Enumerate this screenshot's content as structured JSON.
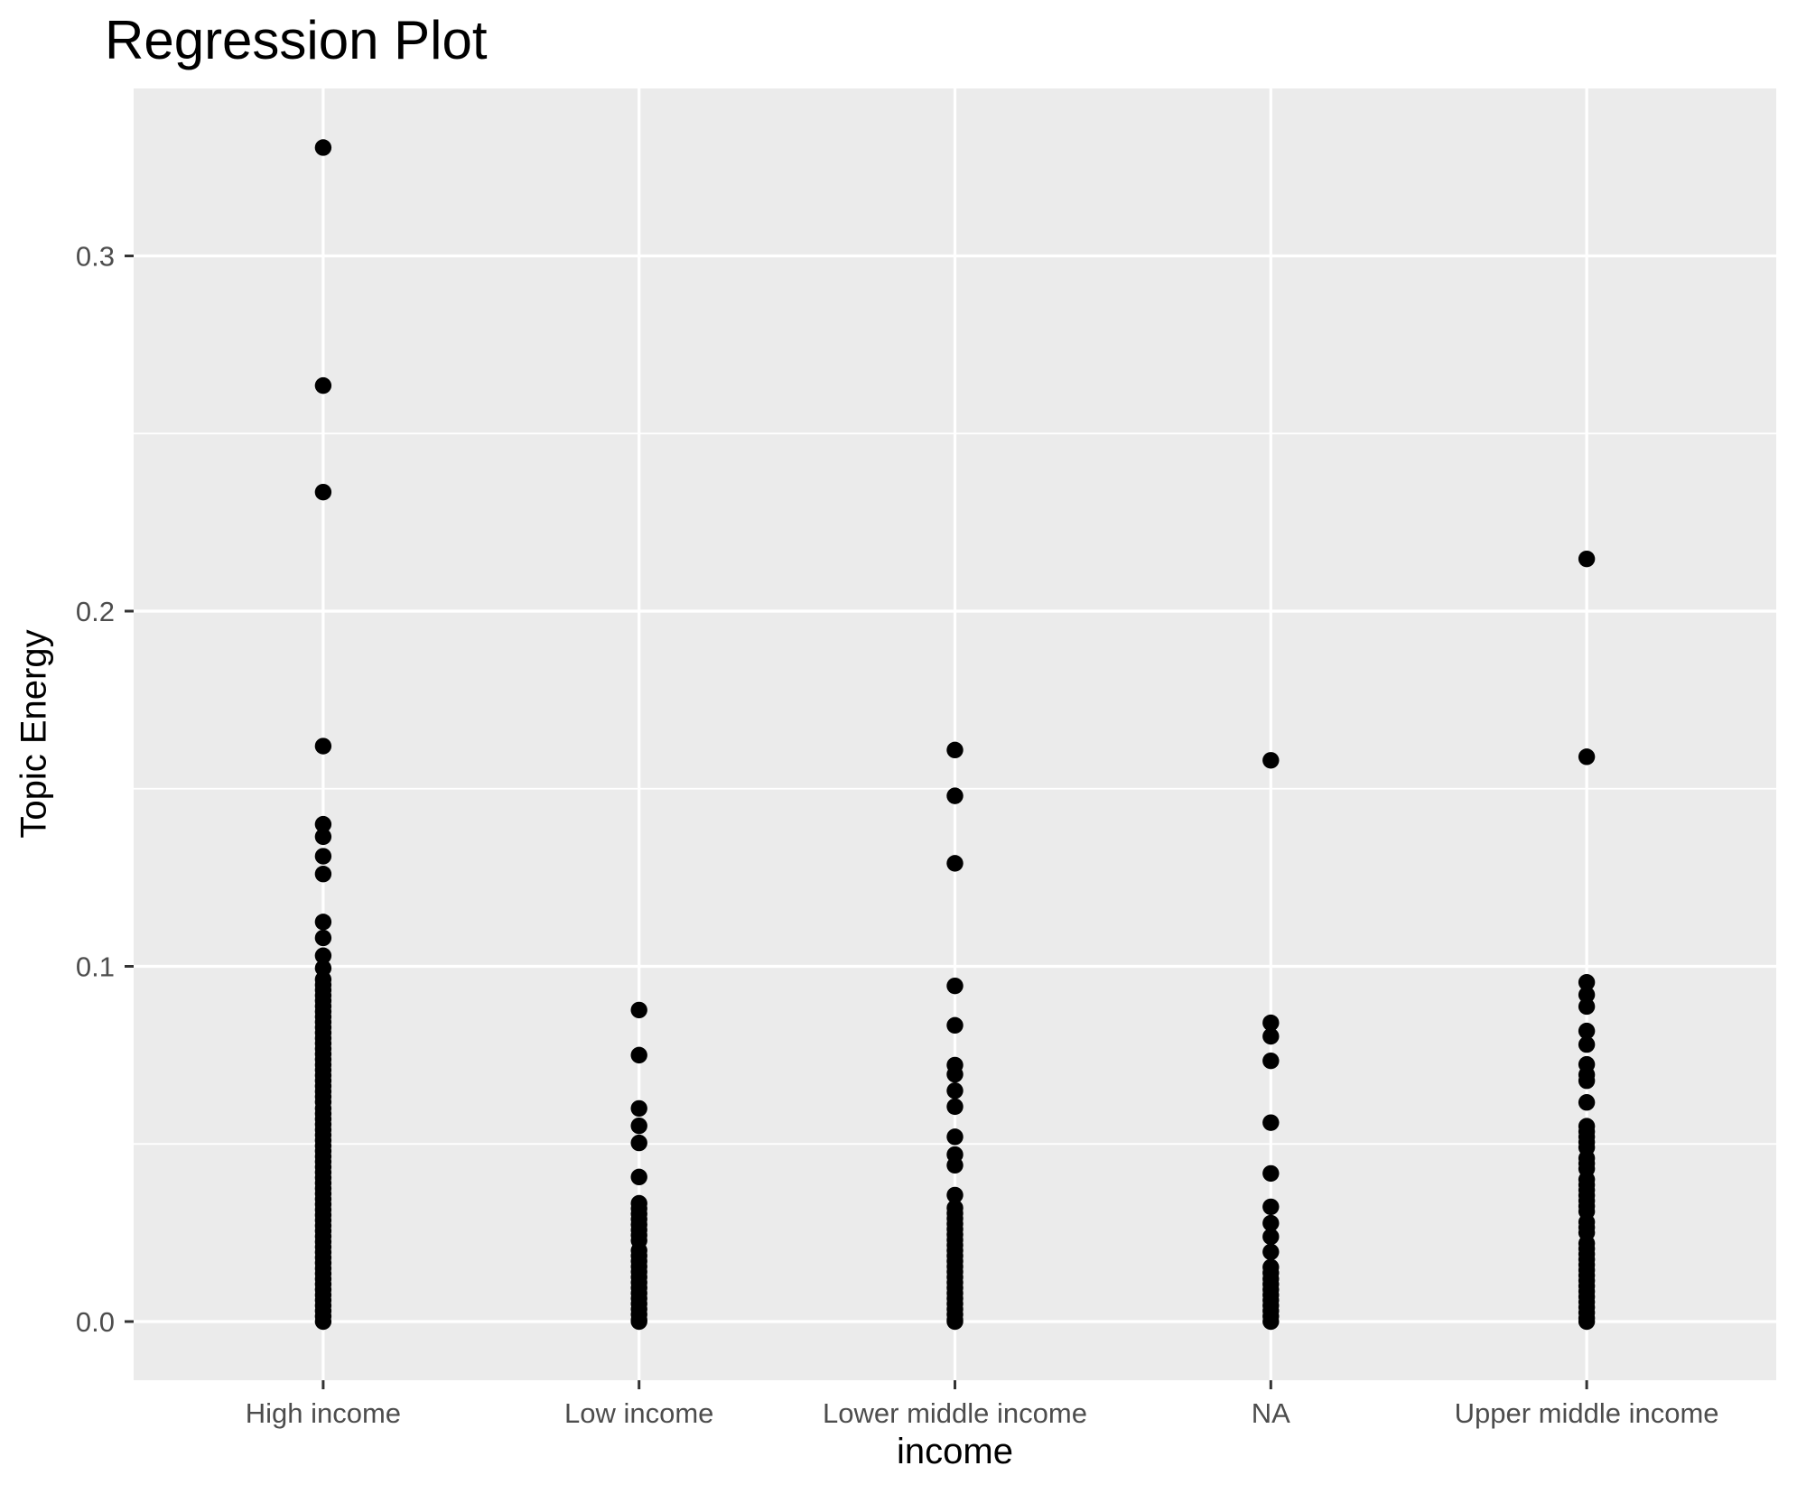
{
  "title": "Regression Plot",
  "chart_data": {
    "type": "scatter",
    "title": "Regression Plot",
    "xlabel": "income",
    "ylabel": "Topic Energy",
    "categories": [
      "High income",
      "Low income",
      "Lower middle income",
      "NA",
      "Upper middle income"
    ],
    "y_tick_labels": [
      "0.0",
      "0.1",
      "0.2",
      "0.3"
    ],
    "y_tick_values": [
      0.0,
      0.1,
      0.2,
      0.3
    ],
    "y_minor_values": [
      0.05,
      0.15,
      0.25
    ],
    "ylim": [
      -0.0165,
      0.347
    ],
    "grid": "white major and minor gridlines on gray panel",
    "legend_position": "none",
    "colors": {
      "page_bg": "#FFFFFF",
      "panel_bg": "#EBEBEB",
      "gridline": "#FFFFFF",
      "point": "#000000",
      "tick_label_text": "#4D4D4D",
      "axis_title_text": "#000000",
      "tick_mark": "#333333"
    },
    "series": [
      {
        "name": "High income",
        "values": [
          0.3305,
          0.2635,
          0.2335,
          0.162,
          0.14,
          0.1365,
          0.131,
          0.126,
          0.1125,
          0.108,
          0.103,
          0.0995,
          0.0963,
          0.0948,
          0.0933,
          0.0918,
          0.0903,
          0.0888,
          0.0873,
          0.0858,
          0.0843,
          0.0828,
          0.0813,
          0.0798,
          0.0783,
          0.0768,
          0.0753,
          0.0738,
          0.0723,
          0.0708,
          0.0693,
          0.0678,
          0.0663,
          0.0648,
          0.0633,
          0.0618,
          0.06,
          0.0585,
          0.057,
          0.0555,
          0.054,
          0.0525,
          0.051,
          0.0495,
          0.048,
          0.0465,
          0.045,
          0.0435,
          0.042,
          0.0405,
          0.039,
          0.0375,
          0.036,
          0.0345,
          0.033,
          0.0315,
          0.03,
          0.0285,
          0.027,
          0.0255,
          0.024,
          0.0225,
          0.021,
          0.0195,
          0.018,
          0.0165,
          0.015,
          0.0135,
          0.012,
          0.0105,
          0.009,
          0.0075,
          0.006,
          0.0045,
          0.003,
          0.0015,
          0.0
        ]
      },
      {
        "name": "Low income",
        "values": [
          0.0877,
          0.075,
          0.06,
          0.0551,
          0.0503,
          0.0407,
          0.0333,
          0.0318,
          0.0303,
          0.0288,
          0.0273,
          0.0258,
          0.0243,
          0.0228,
          0.02,
          0.0185,
          0.017,
          0.0155,
          0.014,
          0.0125,
          0.011,
          0.0095,
          0.008,
          0.0065,
          0.005,
          0.0035,
          0.002,
          0.0005,
          0.0
        ]
      },
      {
        "name": "Lower middle income",
        "values": [
          0.1609,
          0.148,
          0.129,
          0.0945,
          0.0834,
          0.0722,
          0.0696,
          0.065,
          0.0605,
          0.052,
          0.047,
          0.044,
          0.0356,
          0.032,
          0.0305,
          0.029,
          0.0275,
          0.026,
          0.0245,
          0.023,
          0.0215,
          0.02,
          0.0185,
          0.017,
          0.0155,
          0.014,
          0.0125,
          0.011,
          0.0095,
          0.008,
          0.0065,
          0.005,
          0.0035,
          0.002,
          0.0005,
          0.0
        ]
      },
      {
        "name": "NA",
        "values": [
          0.158,
          0.0841,
          0.0803,
          0.0734,
          0.056,
          0.0417,
          0.0323,
          0.0277,
          0.0239,
          0.0196,
          0.0153,
          0.0137,
          0.012,
          0.0105,
          0.009,
          0.0075,
          0.006,
          0.0045,
          0.003,
          0.0015,
          0.0
        ]
      },
      {
        "name": "Upper middle income",
        "values": [
          0.2147,
          0.159,
          0.0955,
          0.092,
          0.0887,
          0.0818,
          0.078,
          0.0724,
          0.0695,
          0.0678,
          0.0617,
          0.055,
          0.0535,
          0.052,
          0.0505,
          0.049,
          0.046,
          0.0445,
          0.043,
          0.04,
          0.0385,
          0.037,
          0.0355,
          0.034,
          0.0325,
          0.031,
          0.028,
          0.0265,
          0.025,
          0.022,
          0.0205,
          0.019,
          0.0175,
          0.016,
          0.0145,
          0.013,
          0.0115,
          0.01,
          0.0085,
          0.007,
          0.0055,
          0.004,
          0.0025,
          0.001,
          0.0
        ]
      }
    ]
  }
}
